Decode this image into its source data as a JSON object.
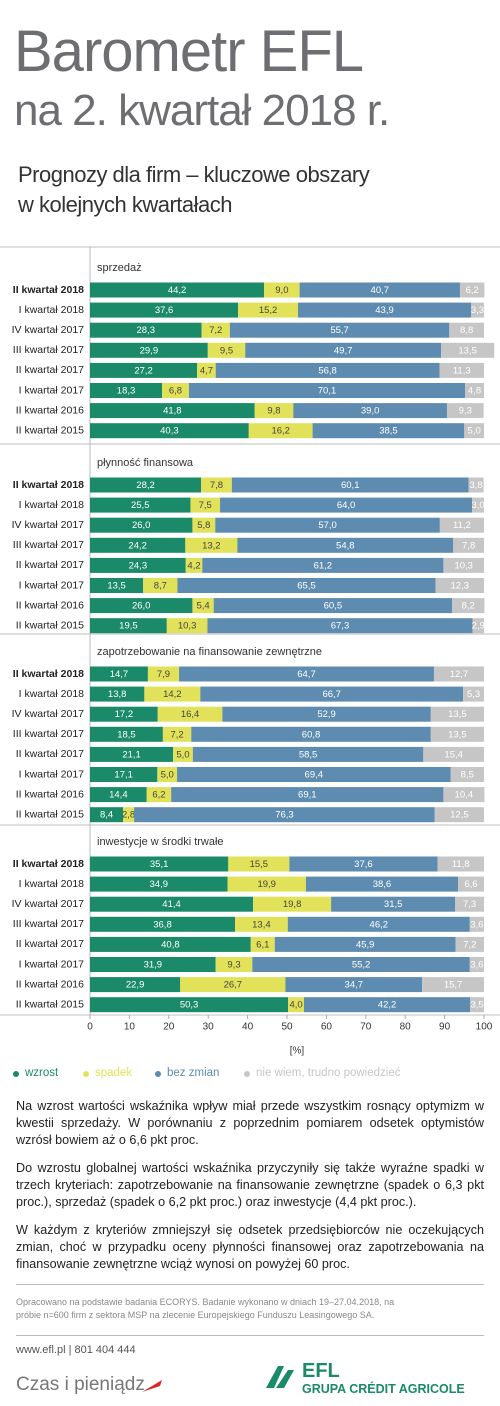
{
  "header": {
    "title": "Barometr EFL",
    "subtitle": "na 2. kwartał 2018 r."
  },
  "chart_heading": {
    "lines": [
      "Prognozy dla firm  – kluczowe obszary",
      "w kolejnych kwartałach"
    ]
  },
  "chart_data": [
    {
      "type": "bar",
      "orientation": "horizontal",
      "stacked": true,
      "title": "sprzedaż",
      "categories": [
        "II kwartał 2018",
        "I kwartał 2018",
        "IV kwartał 2017",
        "III kwartał 2017",
        "II kwartał 2017",
        "I kwartał 2017",
        "II kwartał 2016",
        "II kwartał 2015"
      ],
      "xlim": [
        0,
        100
      ],
      "series": [
        {
          "name": "wzrost",
          "color": "#1b8a68",
          "values": [
            44.2,
            37.6,
            28.3,
            29.9,
            27.2,
            18.3,
            41.8,
            40.3
          ],
          "value_labels": [
            "44,2",
            "37,6",
            "28,3",
            "29,9",
            "27,2",
            "18,3",
            "41,8",
            "40,3"
          ]
        },
        {
          "name": "spadek",
          "color": "#e2e25a",
          "values": [
            9.0,
            15.2,
            7.2,
            9.5,
            4.7,
            6.8,
            9.8,
            16.2
          ],
          "value_labels": [
            "9,0",
            "15,2",
            "7,2",
            "9,5",
            "4,7",
            "6,8",
            "9,8",
            "16,2"
          ]
        },
        {
          "name": "bez zmian",
          "color": "#5d8cb0",
          "values": [
            40.7,
            43.9,
            55.7,
            49.7,
            56.8,
            70.1,
            39.0,
            38.5
          ],
          "value_labels": [
            "40,7",
            "43,9",
            "55,7",
            "49,7",
            "56,8",
            "70,1",
            "39,0",
            "38,5"
          ]
        },
        {
          "name": "nie wiem, trudno powiedzieć",
          "color": "#c6c6c6",
          "values": [
            6.2,
            3.3,
            8.8,
            13.5,
            11.3,
            4.8,
            9.3,
            5.0
          ],
          "value_labels": [
            "6,2",
            "3,3",
            "8,8",
            "13,5",
            "11,3",
            "4,8",
            "9,3",
            "5,0"
          ]
        }
      ]
    },
    {
      "type": "bar",
      "orientation": "horizontal",
      "stacked": true,
      "title": "płynność finansowa",
      "categories": [
        "II kwartał 2018",
        "I kwartał 2018",
        "IV kwartał 2017",
        "III kwartał 2017",
        "II kwartał 2017",
        "I kwartał 2017",
        "II kwartał 2016",
        "II kwartał 2015"
      ],
      "xlim": [
        0,
        100
      ],
      "series": [
        {
          "color": "#1b8a68",
          "values": [
            28.2,
            25.5,
            26.0,
            24.2,
            24.3,
            13.5,
            26.0,
            19.5
          ],
          "value_labels": [
            "28,2",
            "25,5",
            "26,0",
            "24,2",
            "24,3",
            "13,5",
            "26,0",
            "19,5"
          ]
        },
        {
          "color": "#e2e25a",
          "values": [
            7.8,
            7.5,
            5.8,
            13.2,
            4.2,
            8.7,
            5.4,
            10.3
          ],
          "value_labels": [
            "7,8",
            "7,5",
            "5,8",
            "13,2",
            "4,2",
            "8,7",
            "5,4",
            "10,3"
          ]
        },
        {
          "color": "#5d8cb0",
          "values": [
            60.1,
            64.0,
            57.0,
            54.8,
            61.2,
            65.5,
            60.5,
            67.3
          ],
          "value_labels": [
            "60,1",
            "64,0",
            "57,0",
            "54,8",
            "61,2",
            "65,5",
            "60,5",
            "67,3"
          ]
        },
        {
          "color": "#c6c6c6",
          "values": [
            3.8,
            3.0,
            11.2,
            7.8,
            10.3,
            12.3,
            8.2,
            2.9
          ],
          "value_labels": [
            "3,8",
            "3,0",
            "11,2",
            "7,8",
            "10,3",
            "12,3",
            "8,2",
            "2,9"
          ]
        }
      ]
    },
    {
      "type": "bar",
      "orientation": "horizontal",
      "stacked": true,
      "title": "zapotrzebowanie na finansowanie zewnętrzne",
      "categories": [
        "II kwartał 2018",
        "I kwartał 2018",
        "IV kwartał 2017",
        "III kwartał 2017",
        "II kwartał 2017",
        "I kwartał 2017",
        "II kwartał 2016",
        "II kwartał 2015"
      ],
      "xlim": [
        0,
        100
      ],
      "series": [
        {
          "color": "#1b8a68",
          "values": [
            14.7,
            13.8,
            17.2,
            18.5,
            21.1,
            17.1,
            14.4,
            8.4
          ],
          "value_labels": [
            "14,7",
            "13,8",
            "17,2",
            "18,5",
            "21,1",
            "17,1",
            "14,4",
            "8,4"
          ]
        },
        {
          "color": "#e2e25a",
          "values": [
            7.9,
            14.2,
            16.4,
            7.2,
            5.0,
            5.0,
            6.2,
            2.8
          ],
          "value_labels": [
            "7,9",
            "14,2",
            "16,4",
            "7,2",
            "5,0",
            "5,0",
            "6,2",
            "2,8"
          ]
        },
        {
          "color": "#5d8cb0",
          "values": [
            64.7,
            66.7,
            52.9,
            60.8,
            58.5,
            69.4,
            69.1,
            76.3
          ],
          "value_labels": [
            "64,7",
            "66,7",
            "52,9",
            "60,8",
            "58,5",
            "69,4",
            "69,1",
            "76,3"
          ]
        },
        {
          "color": "#c6c6c6",
          "values": [
            12.7,
            5.3,
            13.5,
            13.5,
            15.4,
            8.5,
            10.4,
            12.5
          ],
          "value_labels": [
            "12,7",
            "5,3",
            "13,5",
            "13,5",
            "15,4",
            "8,5",
            "10,4",
            "12,5"
          ]
        }
      ]
    },
    {
      "type": "bar",
      "orientation": "horizontal",
      "stacked": true,
      "title": "inwestycje w środki trwałe",
      "categories": [
        "II kwartał 2018",
        "I kwartał 2018",
        "IV kwartał 2017",
        "III kwartał 2017",
        "II kwartał 2017",
        "I kwartał 2017",
        "II kwartał 2016",
        "II kwartał 2015"
      ],
      "xlim": [
        0,
        100
      ],
      "xticks": [
        0,
        10,
        20,
        30,
        40,
        50,
        60,
        70,
        80,
        90,
        100
      ],
      "xlabel": "[%]",
      "series": [
        {
          "color": "#1b8a68",
          "values": [
            35.1,
            34.9,
            41.4,
            36.8,
            40.8,
            31.9,
            22.9,
            50.3
          ],
          "value_labels": [
            "35,1",
            "34,9",
            "41,4",
            "36,8",
            "40,8",
            "31,9",
            "22,9",
            "50,3"
          ]
        },
        {
          "color": "#e2e25a",
          "values": [
            15.5,
            19.9,
            19.8,
            13.4,
            6.1,
            9.3,
            26.7,
            4.0
          ],
          "value_labels": [
            "15,5",
            "19,9",
            "19,8",
            "13,4",
            "6,1",
            "9,3",
            "26,7",
            "4,0"
          ]
        },
        {
          "color": "#5d8cb0",
          "values": [
            37.6,
            38.6,
            31.5,
            46.2,
            45.9,
            55.2,
            34.7,
            42.2
          ],
          "value_labels": [
            "37,6",
            "38,6",
            "31,5",
            "46,2",
            "45,9",
            "55,2",
            "34,7",
            "42,2"
          ]
        },
        {
          "color": "#c6c6c6",
          "values": [
            11.8,
            6.6,
            7.3,
            3.6,
            7.2,
            3.6,
            15.7,
            3.5
          ],
          "value_labels": [
            "11,8",
            "6,6",
            "7,3",
            "3,6",
            "7,2",
            "3,6",
            "15,7",
            "3,5"
          ]
        }
      ]
    }
  ],
  "body": {
    "paragraphs": [
      "Na wzrost wartości wskaźnika wpływ miał przede wszystkim rosnący optymizm w kwestii sprzedaży. W porównaniu z poprzednim pomiarem odsetek optymistów wzrósł bowiem aż o 6,6 pkt proc.",
      "Do wzrostu globalnej wartości wskaźnika przyczyniły się także wyraźne spadki w trzech kryteriach: zapotrzebowanie na finansowanie zewnętrzne (spadek o 6,3 pkt proc.), sprzedaż (spadek o 6,2 pkt proc.) oraz inwestycje (4,4 pkt proc.).",
      "W każdym z kryteriów zmniejszył się odsetek przedsiębiorców nie oczekujących zmian, choć w przypadku oceny płynności finansowej oraz zapotrzebowania na finansowanie zewnętrzne wciąż wynosi on powyżej 60 proc."
    ]
  },
  "source_note": "Opracowano na podstawie badania ECORYS. Badanie wykonano w dniach 19–27.04.2018, na próbie n=600 firm z sektora MSP na zlecenie Europejskiego Funduszu Leasingowego SA.",
  "footer": {
    "contact": "www.efl.pl | 801 404 444",
    "tagline": "Czas i pieniądz",
    "logo": "EFL",
    "logo_subtitle": "GRUPA CRÉDIT AGRICOLE"
  }
}
